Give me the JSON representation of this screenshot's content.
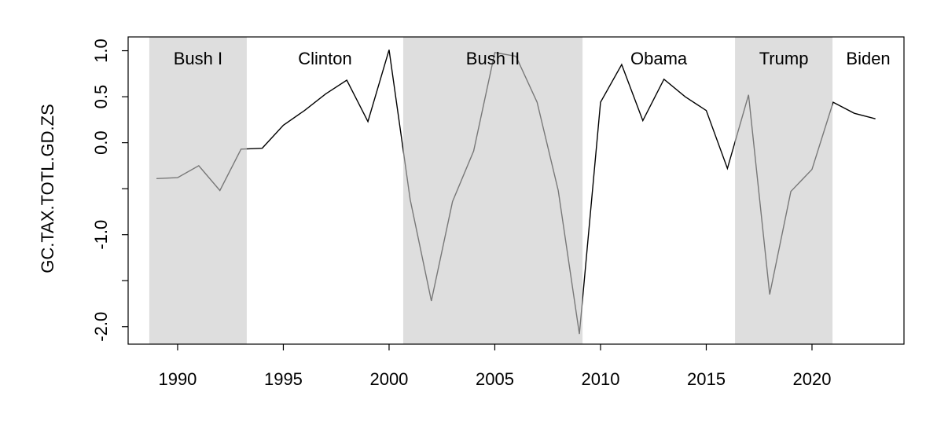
{
  "chart_data": {
    "type": "line",
    "ylabel": "GC.TAX.TOTL.GD.ZS",
    "x": [
      1989,
      1990,
      1991,
      1992,
      1993,
      1994,
      1995,
      1996,
      1997,
      1998,
      1999,
      2000,
      2001,
      2002,
      2003,
      2004,
      2005,
      2006,
      2007,
      2008,
      2009,
      2010,
      2011,
      2012,
      2013,
      2014,
      2015,
      2016,
      2017,
      2018,
      2019,
      2020,
      2021,
      2022,
      2023
    ],
    "values": [
      -0.39,
      -0.38,
      -0.25,
      -0.52,
      -0.07,
      -0.06,
      0.19,
      0.35,
      0.53,
      0.68,
      0.23,
      1.01,
      -0.62,
      -1.72,
      -0.64,
      -0.09,
      0.98,
      0.94,
      0.44,
      -0.52,
      -2.08,
      0.44,
      0.85,
      0.24,
      0.69,
      0.5,
      0.35,
      -0.28,
      0.52,
      -1.65,
      -0.53,
      -0.29,
      0.44,
      0.32,
      0.26
    ],
    "color": "#000000",
    "xlim": [
      1987.66,
      2024.35
    ],
    "xticks": [
      1990,
      1995,
      2000,
      2005,
      2010,
      2015,
      2020
    ],
    "ylim": [
      -2.19,
      1.15
    ],
    "yticks": [
      {
        "value": 1,
        "label": "1.0"
      },
      0.5,
      {
        "value": 0,
        "label": "0.0"
      },
      {
        "value": -0.5,
        "label": null
      },
      {
        "value": -1,
        "label": "-1.0"
      },
      {
        "value": -1.5,
        "label": null
      },
      {
        "value": -2,
        "label": "-2.0"
      }
    ],
    "shade_color": "rgba(200,200,200,0.6)",
    "periods": [
      {
        "name": "Bush I",
        "start": 1988.66,
        "end": 1993.27,
        "shaded": true
      },
      {
        "name": "Clinton",
        "start": 1993.27,
        "end": 2000.67,
        "shaded": false
      },
      {
        "name": "Bush II",
        "start": 2000.67,
        "end": 2009.15,
        "shaded": true
      },
      {
        "name": "Obama",
        "start": 2009.15,
        "end": 2016.36,
        "shaded": false
      },
      {
        "name": "Trump",
        "start": 2016.36,
        "end": 2020.97,
        "shaded": true
      },
      {
        "name": "Biden",
        "start": 2020.97,
        "end": 2024.35,
        "shaded": false
      }
    ]
  }
}
